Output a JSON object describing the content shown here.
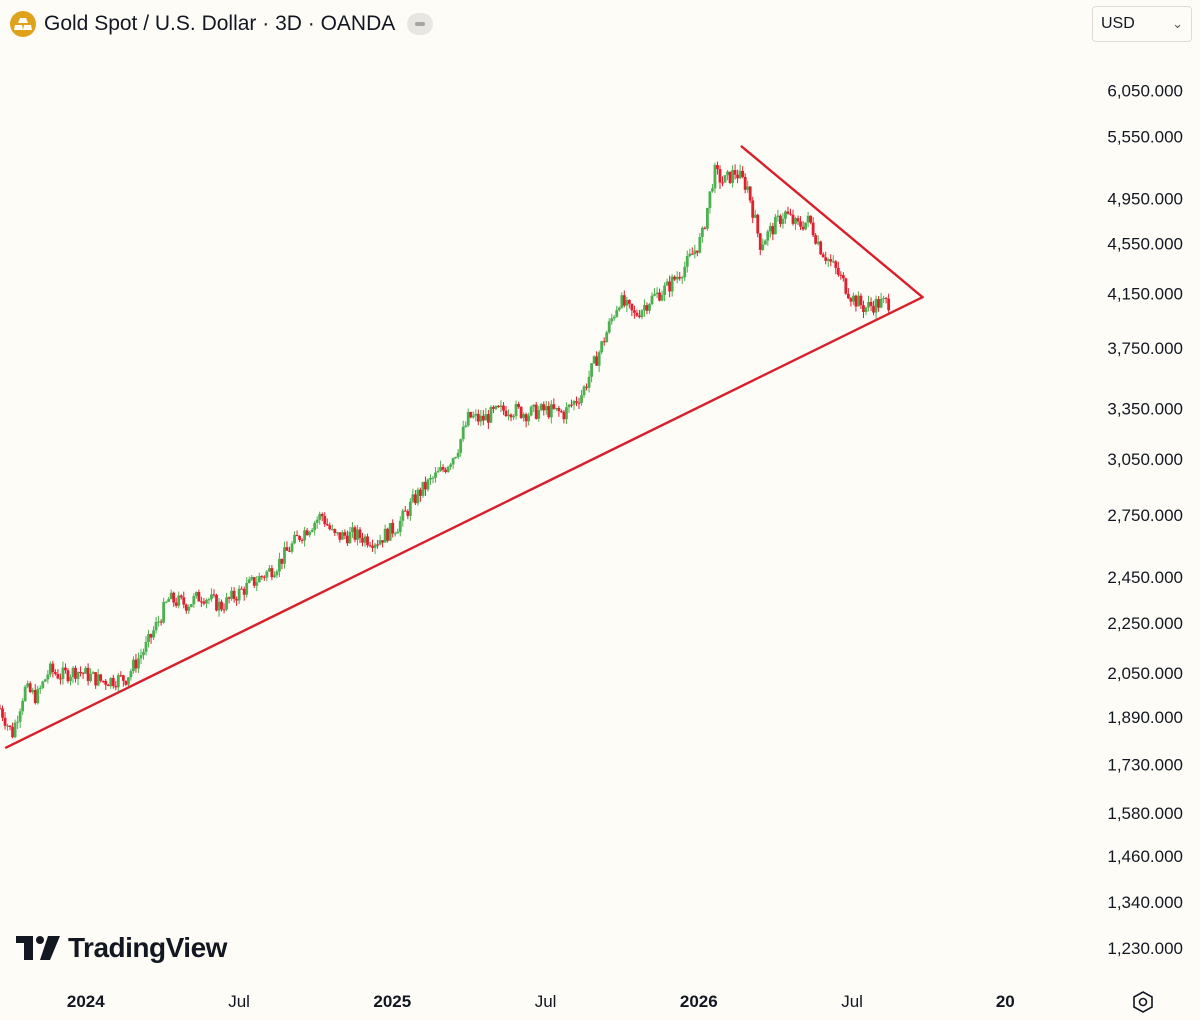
{
  "header": {
    "title": "Gold Spot / U.S. Dollar · 3D · OANDA",
    "icon": "gold-bars-icon",
    "icon_color": "#e0a21a"
  },
  "currency": {
    "selected": "USD"
  },
  "logo": {
    "text": "TradingView"
  },
  "chart_data": {
    "type": "candlestick",
    "price_scale": "log",
    "ylim": [
      1170,
      6400
    ],
    "y_ticks": [
      "6,050.000",
      "5,550.000",
      "4,950.000",
      "4,550.000",
      "4,150.000",
      "3,750.000",
      "3,350.000",
      "3,050.000",
      "2,750.000",
      "2,450.000",
      "2,250.000",
      "2,050.000",
      "1,890.000",
      "1,730.000",
      "1,580.000",
      "1,460.000",
      "1,340.000",
      "1,230.000"
    ],
    "x_ticks": [
      {
        "label": "2024",
        "bold": true,
        "year": 2024.0
      },
      {
        "label": "Jul",
        "bold": false,
        "year": 2024.5
      },
      {
        "label": "2025",
        "bold": true,
        "year": 2025.0
      },
      {
        "label": "Jul",
        "bold": false,
        "year": 2025.5
      },
      {
        "label": "2026",
        "bold": true,
        "year": 2026.0
      },
      {
        "label": "Jul",
        "bold": false,
        "year": 2026.5
      },
      {
        "label": "20",
        "bold": true,
        "year": 2027.0
      }
    ],
    "xlim": [
      2023.72,
      2027.26
    ],
    "up_color": "#4caf50",
    "down_color": "#e0202e",
    "price_path": [
      [
        2023.72,
        1920
      ],
      [
        2023.76,
        1830
      ],
      [
        2023.8,
        1990
      ],
      [
        2023.84,
        1960
      ],
      [
        2023.88,
        2060
      ],
      [
        2023.92,
        2040
      ],
      [
        2023.97,
        2060
      ],
      [
        2024.05,
        2020
      ],
      [
        2024.13,
        2030
      ],
      [
        2024.2,
        2160
      ],
      [
        2024.27,
        2350
      ],
      [
        2024.33,
        2330
      ],
      [
        2024.38,
        2370
      ],
      [
        2024.44,
        2320
      ],
      [
        2024.5,
        2380
      ],
      [
        2024.55,
        2430
      ],
      [
        2024.62,
        2500
      ],
      [
        2024.7,
        2650
      ],
      [
        2024.77,
        2750
      ],
      [
        2024.81,
        2640
      ],
      [
        2024.87,
        2650
      ],
      [
        2024.95,
        2620
      ],
      [
        2025.02,
        2700
      ],
      [
        2025.08,
        2850
      ],
      [
        2025.12,
        2920
      ],
      [
        2025.17,
        3000
      ],
      [
        2025.21,
        3100
      ],
      [
        2025.25,
        3300
      ],
      [
        2025.29,
        3280
      ],
      [
        2025.33,
        3320
      ],
      [
        2025.38,
        3350
      ],
      [
        2025.44,
        3320
      ],
      [
        2025.5,
        3340
      ],
      [
        2025.56,
        3320
      ],
      [
        2025.62,
        3450
      ],
      [
        2025.68,
        3750
      ],
      [
        2025.74,
        4100
      ],
      [
        2025.79,
        3980
      ],
      [
        2025.84,
        4100
      ],
      [
        2025.9,
        4200
      ],
      [
        2025.96,
        4380
      ],
      [
        2026.01,
        4600
      ],
      [
        2026.05,
        5200
      ],
      [
        2026.08,
        5100
      ],
      [
        2026.12,
        5200
      ],
      [
        2026.16,
        5050
      ],
      [
        2026.2,
        4550
      ],
      [
        2026.24,
        4680
      ],
      [
        2026.28,
        4820
      ],
      [
        2026.32,
        4700
      ],
      [
        2026.36,
        4750
      ],
      [
        2026.4,
        4500
      ],
      [
        2026.45,
        4320
      ],
      [
        2026.5,
        4120
      ],
      [
        2026.54,
        4040
      ],
      [
        2026.58,
        4070
      ],
      [
        2026.62,
        4080
      ]
    ],
    "trendlines": [
      {
        "name": "support",
        "from": [
          2023.74,
          1785
        ],
        "to": [
          2026.73,
          4120
        ],
        "color": "#d81f2a"
      },
      {
        "name": "resistance",
        "from": [
          2026.14,
          5450
        ],
        "to": [
          2026.73,
          4120
        ],
        "color": "#d81f2a"
      }
    ]
  }
}
